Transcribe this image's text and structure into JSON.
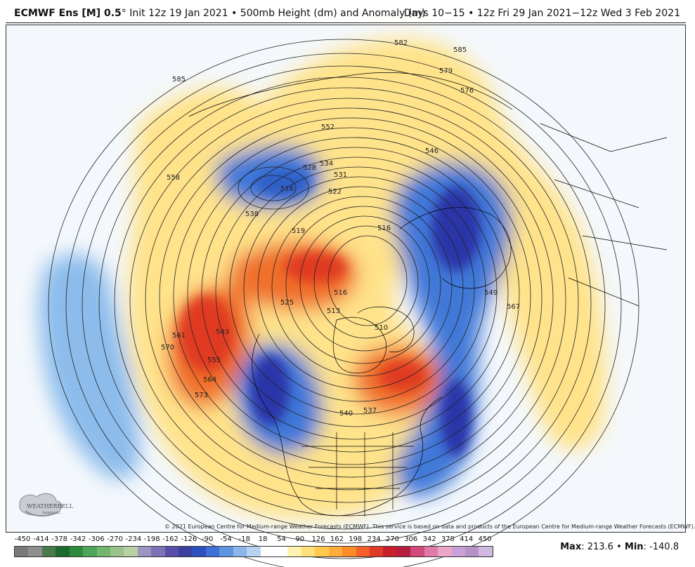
{
  "header": {
    "model": "ECMWF Ens [M] 0.5",
    "deg": "°",
    "init": "Init 12z 19 Jan 2021",
    "bullet": "•",
    "field": "500mb Height (dm) and Anomaly (m)",
    "days": "Days 10−15",
    "valid": "12z Fri 29 Jan 2021−12z Wed 3 Feb 2021"
  },
  "copyright": "© 2021 European Centre for Medium-range Weather Forecasts (ECMWF). This service is based on data and products of the European Centre for Medium-range Weather Forecasts (ECMWF).",
  "logo": {
    "text": "WEATHERBELL",
    "sub": "Analytics LLC"
  },
  "scale": {
    "ticks": [
      "-450",
      "-414",
      "-378",
      "-342",
      "-306",
      "-270",
      "-234",
      "-198",
      "-162",
      "-126",
      "-90",
      "-54",
      "-18",
      "18",
      "54",
      "90",
      "126",
      "162",
      "198",
      "234",
      "270",
      "306",
      "342",
      "378",
      "414",
      "450"
    ],
    "colors": [
      "#7a7a7a",
      "#8f8f8f",
      "#4a7a4a",
      "#1d6a2d",
      "#2e8b3e",
      "#4ea55a",
      "#73b66e",
      "#9ac48a",
      "#b9cfa4",
      "#9b95c2",
      "#7d72b5",
      "#5a4fa8",
      "#3a3fa0",
      "#2e4fbf",
      "#3f6fd6",
      "#5f94e0",
      "#8ab6ea",
      "#b7d3f2",
      "#ffffff",
      "#ffffff",
      "#fff3b0",
      "#ffe07a",
      "#ffc94d",
      "#ffad3a",
      "#ff8a2a",
      "#f5602a",
      "#e03a28",
      "#c8202a",
      "#b51e3c",
      "#d04a7a",
      "#e07aa6",
      "#e9a6c6",
      "#c9a0d8",
      "#b592c8",
      "#d0b8de"
    ],
    "max_label": "Max",
    "max_value": "213.6",
    "min_label": "Min",
    "min_value": "-140.8"
  },
  "contour_labels": [
    "585",
    "582",
    "579",
    "576",
    "585",
    "552",
    "546",
    "534",
    "531",
    "528",
    "522",
    "516",
    "516",
    "519",
    "538",
    "558",
    "561",
    "570",
    "543",
    "555",
    "564",
    "573",
    "525",
    "513",
    "516",
    "510",
    "540",
    "537",
    "549",
    "567"
  ],
  "colors": {
    "pos_strong": "#e8401e",
    "pos_mid": "#ff9a3a",
    "pos_weak": "#ffe38a",
    "pos_faint": "#fff4b8",
    "neg_strong": "#2f3fb0",
    "neg_mid": "#3f78d8",
    "neg_weak": "#8bbcec",
    "neg_faint": "#c4dcf4"
  }
}
